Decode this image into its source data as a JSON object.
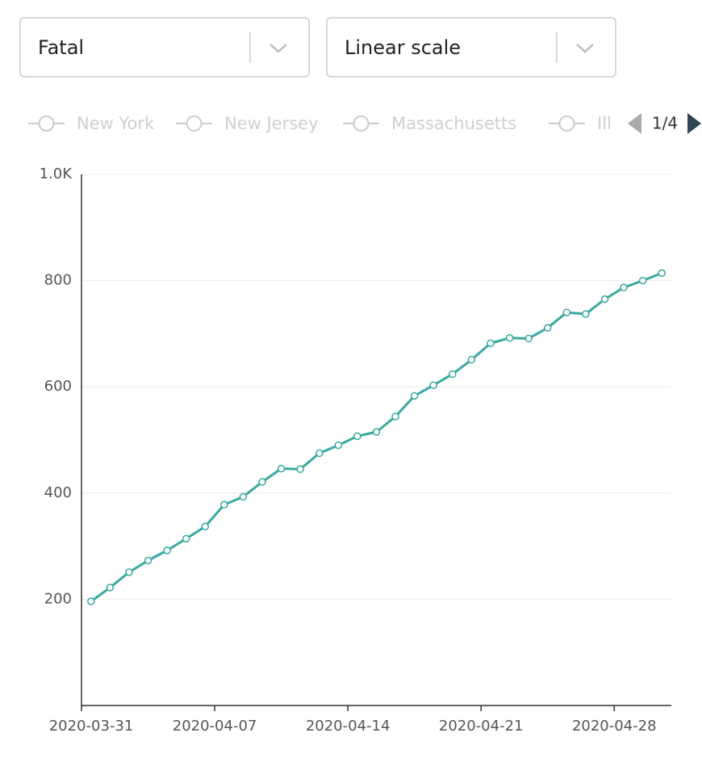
{
  "controls": {
    "metric": "Fatal",
    "scale": "Linear scale"
  },
  "legend": {
    "items": [
      "New York",
      "New Jersey",
      "Massachusetts",
      "Illinois"
    ],
    "page": "1/4"
  },
  "chart_data": {
    "type": "line",
    "categories": [
      "2020-03-31",
      "2020-04-01",
      "2020-04-02",
      "2020-04-03",
      "2020-04-04",
      "2020-04-05",
      "2020-04-06",
      "2020-04-07",
      "2020-04-08",
      "2020-04-09",
      "2020-04-10",
      "2020-04-11",
      "2020-04-12",
      "2020-04-13",
      "2020-04-14",
      "2020-04-15",
      "2020-04-16",
      "2020-04-17",
      "2020-04-18",
      "2020-04-19",
      "2020-04-20",
      "2020-04-21",
      "2020-04-22",
      "2020-04-23",
      "2020-04-24",
      "2020-04-25",
      "2020-04-26",
      "2020-04-27",
      "2020-04-28",
      "2020-04-29",
      "2020-04-30"
    ],
    "xticks": [
      "2020-03-31",
      "2020-04-07",
      "2020-04-14",
      "2020-04-21",
      "2020-04-28"
    ],
    "series": [
      {
        "color": "#3aa99f",
        "values": [
          196,
          222,
          251,
          273,
          292,
          314,
          337,
          378,
          393,
          421,
          446,
          445,
          475,
          490,
          507,
          515,
          544,
          583,
          603,
          624,
          651,
          682,
          692,
          691,
          711,
          740,
          737,
          765,
          787,
          800,
          814
        ]
      }
    ],
    "ylim": [
      0,
      1000
    ],
    "yticks": [
      200,
      400,
      600,
      800,
      {
        "value": 1000,
        "label": "1.0K"
      }
    ],
    "grid": true
  }
}
